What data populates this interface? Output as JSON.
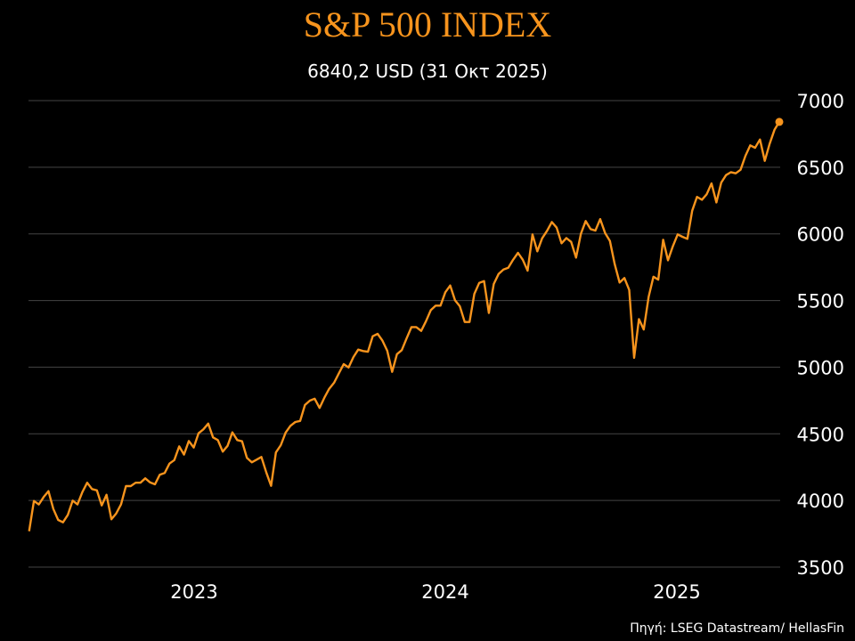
{
  "chart_data": {
    "type": "line",
    "title": "S&P 500 INDEX",
    "subtitle": "6840,2 USD (31 Οκτ 2025)",
    "source": "Πηγή: LSEG Datastream/ HellasFin",
    "xlabel": "",
    "ylabel": "",
    "x_start": "2022-11-04",
    "x_end": "2025-10-31",
    "frequency": "weekly",
    "x_tick_labels": [
      "2023",
      "2024",
      "2025"
    ],
    "y_ticks": [
      3500,
      4000,
      4500,
      5000,
      5500,
      6000,
      6500,
      7000
    ],
    "ylim": [
      3500,
      7000
    ],
    "y_axis_side": "right",
    "grid": "horizontal",
    "legend": "none",
    "line_color": "#f7941d",
    "title_color": "#f7941d",
    "end_marker": true,
    "values": [
      3769,
      3996,
      3970,
      4026,
      4070,
      3936,
      3854,
      3836,
      3892,
      3999,
      3970,
      4063,
      4133,
      4086,
      4076,
      3963,
      4043,
      3859,
      3903,
      3970,
      4108,
      4108,
      4133,
      4133,
      4166,
      4135,
      4121,
      4193,
      4206,
      4277,
      4303,
      4406,
      4344,
      4446,
      4397,
      4504,
      4533,
      4577,
      4473,
      4453,
      4366,
      4410,
      4511,
      4453,
      4444,
      4320,
      4286,
      4306,
      4326,
      4210,
      4110,
      4360,
      4415,
      4509,
      4560,
      4589,
      4597,
      4716,
      4749,
      4764,
      4694,
      4771,
      4838,
      4883,
      4954,
      5023,
      4998,
      5076,
      5132,
      5121,
      5116,
      5232,
      5250,
      5199,
      5123,
      4965,
      5098,
      5128,
      5217,
      5301,
      5301,
      5272,
      5345,
      5428,
      5462,
      5462,
      5562,
      5613,
      5502,
      5457,
      5339,
      5339,
      5550,
      5633,
      5646,
      5406,
      5624,
      5699,
      5733,
      5746,
      5806,
      5858,
      5806,
      5724,
      5996,
      5869,
      5967,
      6023,
      6089,
      6047,
      5929,
      5969,
      5940,
      5822,
      6000,
      6096,
      6036,
      6025,
      6111,
      6007,
      5947,
      5773,
      5635,
      5669,
      5579,
      5070,
      5361,
      5283,
      5528,
      5679,
      5657,
      5956,
      5802,
      5906,
      5996,
      5978,
      5963,
      6174,
      6278,
      6256,
      6297,
      6379,
      6236,
      6385,
      6441,
      6463,
      6454,
      6481,
      6586,
      6664,
      6646,
      6708,
      6548,
      6675,
      6781,
      6840.2
    ]
  }
}
